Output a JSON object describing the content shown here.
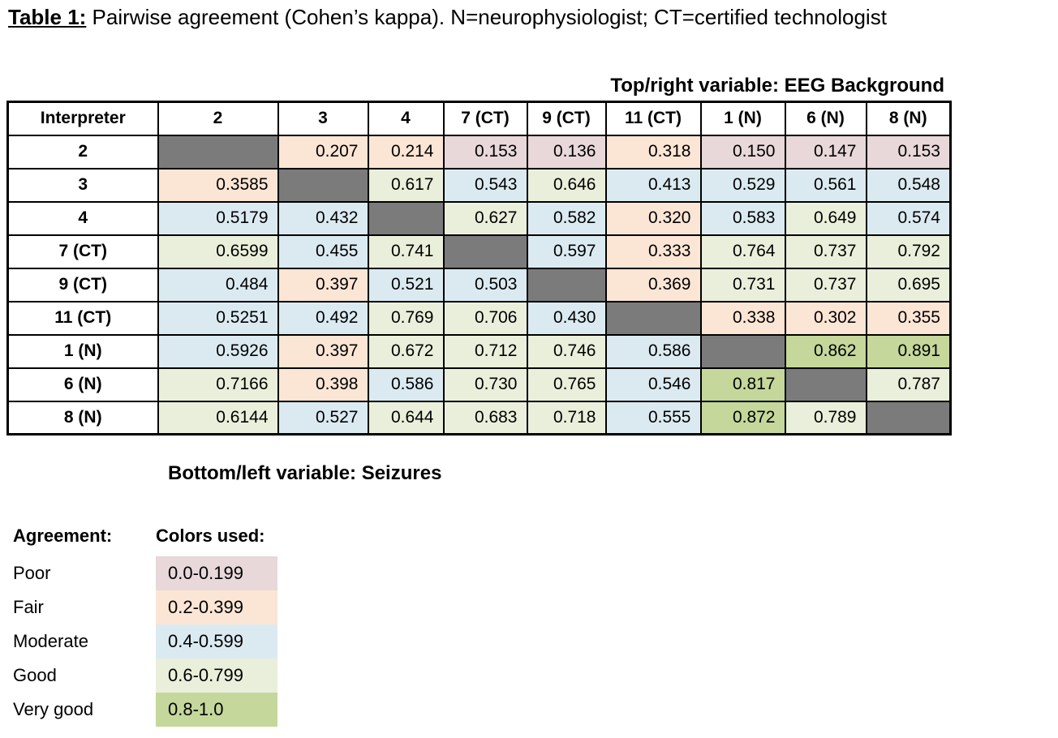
{
  "title": {
    "label": "Table 1:",
    "rest": " Pairwise agreement (Cohen’s kappa). N=neurophysiologist; CT=certified technologist"
  },
  "annotations": {
    "top_variable": "Top/right variable: EEG Background",
    "bottom_variable": "Bottom/left variable: Seizures"
  },
  "chart_data": {
    "type": "table",
    "corner_header": "Interpreter",
    "columns": [
      "2",
      "3",
      "4",
      "7 (CT)",
      "9 (CT)",
      "11 (CT)",
      "1 (N)",
      "6 (N)",
      "8 (N)"
    ],
    "rows": [
      "2",
      "3",
      "4",
      "7 (CT)",
      "9 (CT)",
      "11 (CT)",
      "1 (N)",
      "6 (N)",
      "8 (N)"
    ],
    "matrix": [
      [
        null,
        "0.207",
        "0.214",
        "0.153",
        "0.136",
        "0.318",
        "0.150",
        "0.147",
        "0.153"
      ],
      [
        "0.3585",
        null,
        "0.617",
        "0.543",
        "0.646",
        "0.413",
        "0.529",
        "0.561",
        "0.548"
      ],
      [
        "0.5179",
        "0.432",
        null,
        "0.627",
        "0.582",
        "0.320",
        "0.583",
        "0.649",
        "0.574"
      ],
      [
        "0.6599",
        "0.455",
        "0.741",
        null,
        "0.597",
        "0.333",
        "0.764",
        "0.737",
        "0.792"
      ],
      [
        "0.484",
        "0.397",
        "0.521",
        "0.503",
        null,
        "0.369",
        "0.731",
        "0.737",
        "0.695"
      ],
      [
        "0.5251",
        "0.492",
        "0.769",
        "0.706",
        "0.430",
        null,
        "0.338",
        "0.302",
        "0.355"
      ],
      [
        "0.5926",
        "0.397",
        "0.672",
        "0.712",
        "0.746",
        "0.586",
        null,
        "0.862",
        "0.891"
      ],
      [
        "0.7166",
        "0.398",
        "0.586",
        "0.730",
        "0.765",
        "0.546",
        "0.817",
        null,
        "0.787"
      ],
      [
        "0.6144",
        "0.527",
        "0.644",
        "0.683",
        "0.718",
        "0.555",
        "0.872",
        "0.789",
        null
      ]
    ],
    "diagonal_color": "#7b7b7b",
    "upper_triangle_variable": "EEG Background",
    "lower_triangle_variable": "Seizures"
  },
  "legend": {
    "agreement_header": "Agreement:",
    "colors_header": "Colors used:",
    "items": [
      {
        "label": "Poor",
        "range": "0.0-0.199",
        "color": "#e8d8d9"
      },
      {
        "label": "Fair",
        "range": "0.2-0.399",
        "color": "#fbe5d5"
      },
      {
        "label": "Moderate",
        "range": "0.4-0.599",
        "color": "#dbeaf1"
      },
      {
        "label": "Good",
        "range": "0.6-0.799",
        "color": "#eaefdb"
      },
      {
        "label": "Very good",
        "range": "0.8-1.0",
        "color": "#c5d79b"
      }
    ]
  }
}
